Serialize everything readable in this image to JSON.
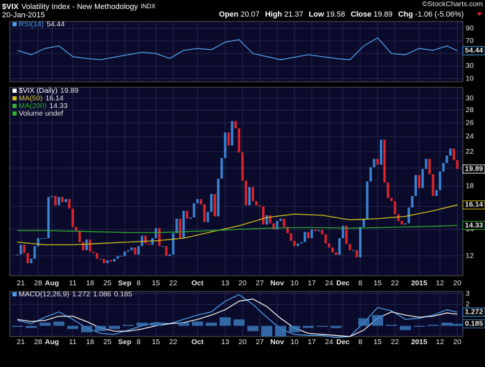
{
  "header": {
    "symbol": "$VIX",
    "name": "Volatility Index - New Methodology",
    "exchange": "INDX",
    "date": "20-Jan-2015",
    "copyright": "©StockCharts.com",
    "quote": {
      "open_label": "Open",
      "open": 20.07,
      "high_label": "High",
      "high": 21.37,
      "low_label": "Low",
      "low": 19.58,
      "close_label": "Close",
      "close": 19.89,
      "chg_label": "Chg",
      "chg": -1.06,
      "chg_pct": "(-5.06%)"
    }
  },
  "chart_data": [
    {
      "type": "line",
      "ylim": [
        5,
        101
      ],
      "yticks": [
        10,
        30,
        50,
        70,
        90
      ],
      "grid": true,
      "x": [
        0,
        4,
        8,
        12,
        16,
        20,
        24,
        28,
        32,
        36,
        40,
        44,
        48,
        52,
        56,
        60,
        64,
        68,
        72,
        76,
        80,
        84,
        88,
        92,
        96,
        100,
        104,
        108,
        112,
        116,
        120,
        124,
        127
      ],
      "series": [
        {
          "name": "RSI(14)",
          "color": "#4d9ee8",
          "label_box": true,
          "values": [
            55,
            48,
            58,
            62,
            45,
            42,
            40,
            44,
            48,
            52,
            50,
            42,
            55,
            58,
            56,
            68,
            72,
            50,
            45,
            40,
            44,
            48,
            45,
            42,
            40,
            62,
            75,
            50,
            48,
            58,
            55,
            62,
            54.44
          ]
        }
      ]
    },
    {
      "type": "candlestick",
      "log_scale": true,
      "ylim": [
        10.7,
        32
      ],
      "yticks": [
        12,
        14,
        16,
        18,
        20,
        22,
        24,
        26,
        28,
        30
      ],
      "grid": true,
      "xticks": [
        {
          "value": 1,
          "label": "21"
        },
        {
          "value": 6,
          "label": "28"
        },
        {
          "value": 10,
          "label": "Aug"
        },
        {
          "value": 16,
          "label": "11"
        },
        {
          "value": 21,
          "label": "18"
        },
        {
          "value": 26,
          "label": "25"
        },
        {
          "value": 31,
          "label": "Sep"
        },
        {
          "value": 35,
          "label": "8"
        },
        {
          "value": 40,
          "label": "15"
        },
        {
          "value": 45,
          "label": "22"
        },
        {
          "value": 52,
          "label": "Oct"
        },
        {
          "value": 60,
          "label": "13"
        },
        {
          "value": 65,
          "label": "20"
        },
        {
          "value": 70,
          "label": "27"
        },
        {
          "value": 75,
          "label": "Nov"
        },
        {
          "value": 80,
          "label": "10"
        },
        {
          "value": 85,
          "label": "17"
        },
        {
          "value": 90,
          "label": "24"
        },
        {
          "value": 94,
          "label": "Dec"
        },
        {
          "value": 99,
          "label": "8"
        },
        {
          "value": 104,
          "label": "15"
        },
        {
          "value": 109,
          "label": "22"
        },
        {
          "value": 116,
          "label": "2015"
        },
        {
          "value": 122,
          "label": "12"
        },
        {
          "value": 127,
          "label": "20"
        }
      ],
      "volume_label": "Volume undef",
      "series": [
        {
          "name": "$VIX (Daily)",
          "type": "candlestick",
          "up_color": "#3b86d6",
          "down_color": "#e0242c",
          "color": "#ffffff",
          "label_box": true,
          "values": [
            12.1,
            12.8,
            12.2,
            11.5,
            11.8,
            12.7,
            13.3,
            13.3,
            13.3,
            16.9,
            17.0,
            16.1,
            16.9,
            16.4,
            16.7,
            15.8,
            14.2,
            13.9,
            13.0,
            12.4,
            13.2,
            12.3,
            12.2,
            11.8,
            11.8,
            11.5,
            11.7,
            11.6,
            11.8,
            12.0,
            12.0,
            12.3,
            12.4,
            12.6,
            12.1,
            12.7,
            13.5,
            12.9,
            12.8,
            13.3,
            14.1,
            12.7,
            12.7,
            12.0,
            12.1,
            13.7,
            14.9,
            13.3,
            15.6,
            14.9,
            15.0,
            16.3,
            16.7,
            16.2,
            14.6,
            15.5,
            17.2,
            15.1,
            18.8,
            21.2,
            24.6,
            22.8,
            26.3,
            25.2,
            21.9,
            18.6,
            16.1,
            17.9,
            16.5,
            16.1,
            16.0,
            14.4,
            15.2,
            14.5,
            14.0,
            14.7,
            14.9,
            14.2,
            13.7,
            13.1,
            12.7,
            12.9,
            13.0,
            13.8,
            13.3,
            13.99,
            13.86,
            13.96,
            13.6,
            12.9,
            12.6,
            12.25,
            12.07,
            13.3,
            14.3,
            12.85,
            12.4,
            12.4,
            11.9,
            14.2,
            14.9,
            18.5,
            20.1,
            21.1,
            20.4,
            23.6,
            18.4,
            16.8,
            16.5,
            15.3,
            14.7,
            14.4,
            14.5,
            15.9,
            17.0,
            19.2,
            17.8,
            19.9,
            21.1,
            19.3,
            17.0,
            17.6,
            19.6,
            20.6,
            21.5,
            22.4,
            20.95,
            19.89
          ]
        },
        {
          "name": "MA(50)",
          "type": "line",
          "color": "#d4c21a",
          "label_box": true,
          "x": [
            0,
            8,
            16,
            24,
            32,
            40,
            48,
            56,
            64,
            72,
            80,
            88,
            96,
            104,
            112,
            120,
            127
          ],
          "values": [
            13.0,
            12.8,
            12.8,
            12.9,
            13.0,
            13.1,
            13.3,
            13.8,
            14.3,
            15.0,
            15.3,
            15.2,
            14.8,
            14.9,
            15.1,
            15.6,
            16.14
          ]
        },
        {
          "name": "MA(200)",
          "type": "line",
          "color": "#2fae2f",
          "label_box": true,
          "x": [
            0,
            8,
            16,
            24,
            32,
            40,
            48,
            56,
            64,
            72,
            80,
            88,
            96,
            104,
            112,
            120,
            127
          ],
          "values": [
            13.9,
            13.9,
            13.85,
            13.8,
            13.75,
            13.75,
            13.8,
            13.9,
            14.0,
            14.1,
            14.15,
            14.15,
            14.1,
            14.15,
            14.2,
            14.25,
            14.33
          ]
        }
      ]
    },
    {
      "type": "macd",
      "title": "MACD(12,26,9)",
      "ylim": [
        -1,
        3.2
      ],
      "yticks": [
        2,
        3
      ],
      "grid": true,
      "x": [
        0,
        4,
        8,
        12,
        16,
        20,
        24,
        28,
        32,
        36,
        40,
        44,
        48,
        52,
        56,
        60,
        64,
        68,
        72,
        76,
        80,
        84,
        88,
        92,
        96,
        100,
        104,
        108,
        112,
        116,
        120,
        124,
        127
      ],
      "series": [
        {
          "type": "line",
          "color": "#4d9ee8",
          "label_box": true,
          "values": [
            0.5,
            0.2,
            0.8,
            1.3,
            0.6,
            -0.2,
            -0.7,
            -0.8,
            -0.4,
            0.0,
            0.3,
            0.2,
            0.6,
            1.0,
            1.3,
            2.3,
            2.9,
            2.0,
            0.8,
            -0.3,
            -0.8,
            -0.9,
            -0.9,
            -1.1,
            -1.0,
            0.3,
            1.7,
            1.4,
            0.6,
            0.7,
            1.0,
            1.5,
            1.272
          ]
        },
        {
          "type": "line",
          "color": "#f0f0f0",
          "values": [
            0.6,
            0.4,
            0.5,
            0.9,
            0.9,
            0.4,
            -0.2,
            -0.5,
            -0.5,
            -0.3,
            0.0,
            0.2,
            0.3,
            0.6,
            1.0,
            1.5,
            2.3,
            2.5,
            1.8,
            0.7,
            -0.2,
            -0.7,
            -0.8,
            -0.9,
            -1.0,
            -0.4,
            0.7,
            1.3,
            1.0,
            0.8,
            0.9,
            1.2,
            1.086
          ]
        },
        {
          "type": "bar",
          "color": "#3a78b8",
          "label_box": true,
          "values": [
            -0.1,
            -0.2,
            0.3,
            0.4,
            -0.3,
            -0.6,
            -0.5,
            -0.3,
            0.1,
            0.3,
            0.3,
            0,
            0.3,
            0.4,
            0.3,
            0.8,
            0.6,
            -0.5,
            -1.0,
            -1.0,
            -0.6,
            -0.2,
            -0.1,
            -0.2,
            0,
            0.7,
            1.0,
            0.1,
            -0.4,
            -0.1,
            0.1,
            0.3,
            0.185
          ]
        }
      ]
    }
  ]
}
